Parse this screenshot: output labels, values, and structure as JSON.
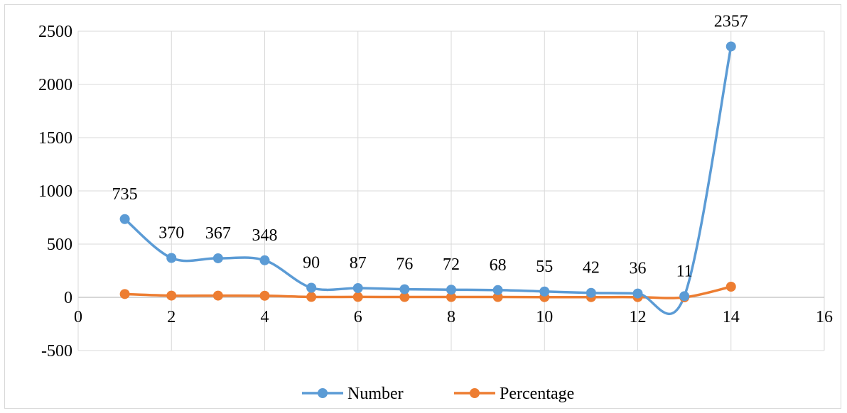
{
  "chart_data": {
    "type": "scatter",
    "title": "",
    "xlabel": "",
    "ylabel": "",
    "xlim": [
      0,
      16
    ],
    "ylim": [
      -500,
      2500
    ],
    "x_ticks": [
      0,
      2,
      4,
      6,
      8,
      10,
      12,
      14,
      16
    ],
    "y_ticks": [
      -500,
      0,
      500,
      1000,
      1500,
      2000,
      2500
    ],
    "grid": true,
    "smoothed_lines": true,
    "legend_position": "bottom",
    "series": [
      {
        "name": "Number",
        "color": "#5b9bd5",
        "x": [
          1,
          2,
          3,
          4,
          5,
          6,
          7,
          8,
          9,
          10,
          11,
          12,
          13,
          14
        ],
        "values": [
          735,
          370,
          367,
          348,
          90,
          87,
          76,
          72,
          68,
          55,
          42,
          36,
          11,
          2357
        ],
        "data_labels": [
          "735",
          "370",
          "367",
          "348",
          "90",
          "87",
          "76",
          "72",
          "68",
          "55",
          "42",
          "36",
          "11",
          "2357"
        ]
      },
      {
        "name": "Percentage",
        "color": "#ed7d31",
        "x": [
          1,
          2,
          3,
          4,
          5,
          6,
          7,
          8,
          9,
          10,
          11,
          12,
          13,
          14
        ],
        "values": [
          31,
          16,
          16,
          15,
          4,
          4,
          3,
          3,
          3,
          2,
          2,
          2,
          0,
          100
        ]
      }
    ]
  }
}
